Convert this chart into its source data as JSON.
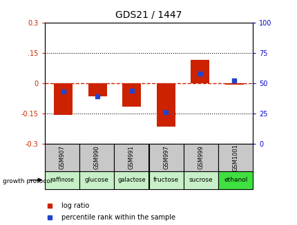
{
  "title": "GDS21 / 1447",
  "samples": [
    "GSM907",
    "GSM990",
    "GSM991",
    "GSM997",
    "GSM999",
    "GSM1001"
  ],
  "protocols": [
    "raffinose",
    "glucose",
    "galactose",
    "fructose",
    "sucrose",
    "ethanol"
  ],
  "log_ratios": [
    -0.155,
    -0.065,
    -0.115,
    -0.215,
    0.115,
    -0.008
  ],
  "percentile_ranks": [
    43,
    39,
    44,
    26,
    58,
    52
  ],
  "bar_color": "#cc2200",
  "dot_color": "#2244cc",
  "ylim_left": [
    -0.3,
    0.3
  ],
  "ylim_right": [
    0,
    100
  ],
  "yticks_left": [
    -0.3,
    -0.15,
    0,
    0.15,
    0.3
  ],
  "yticks_right": [
    0,
    25,
    50,
    75,
    100
  ],
  "hline_color": "#cc2200",
  "dotline_y": [
    0.15,
    -0.15
  ],
  "left_label_color": "#cc2200",
  "right_label_color": "#0000cc",
  "bar_width": 0.55,
  "gsm_bg": "#c8c8c8",
  "prot_colors": [
    "#c8f0c8",
    "#c8f0c8",
    "#c8f0c8",
    "#c8f0c8",
    "#c8f0c8",
    "#40e040"
  ],
  "prot_font_sizes": [
    5.5,
    6.5,
    6.0,
    6.5,
    6.5,
    6.5
  ]
}
